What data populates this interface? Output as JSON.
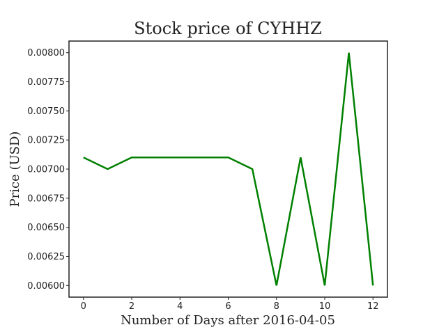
{
  "chart_data": {
    "type": "line",
    "title": "Stock price of CYHHZ",
    "xlabel": "Number of Days after 2016-04-05",
    "ylabel": "Price (USD)",
    "xlim": [
      -0.6,
      12.6
    ],
    "ylim": [
      0.0059,
      0.0081
    ],
    "x_ticks": [
      0,
      2,
      4,
      6,
      8,
      10,
      12
    ],
    "y_ticks": [
      0.006,
      0.00625,
      0.0065,
      0.00675,
      0.007,
      0.00725,
      0.0075,
      0.00775,
      0.008
    ],
    "y_tick_labels": [
      "0.00600",
      "0.00625",
      "0.00650",
      "0.00675",
      "0.00700",
      "0.00725",
      "0.00750",
      "0.00775",
      "0.00800"
    ],
    "grid": false,
    "series": [
      {
        "color": "#008000",
        "x": [
          0,
          1,
          2,
          3,
          4,
          5,
          6,
          7,
          8,
          9,
          10,
          11,
          12
        ],
        "y": [
          0.0071,
          0.007,
          0.0071,
          0.0071,
          0.0071,
          0.0071,
          0.0071,
          0.007,
          0.006,
          0.0071,
          0.006,
          0.008,
          0.006
        ]
      }
    ]
  }
}
